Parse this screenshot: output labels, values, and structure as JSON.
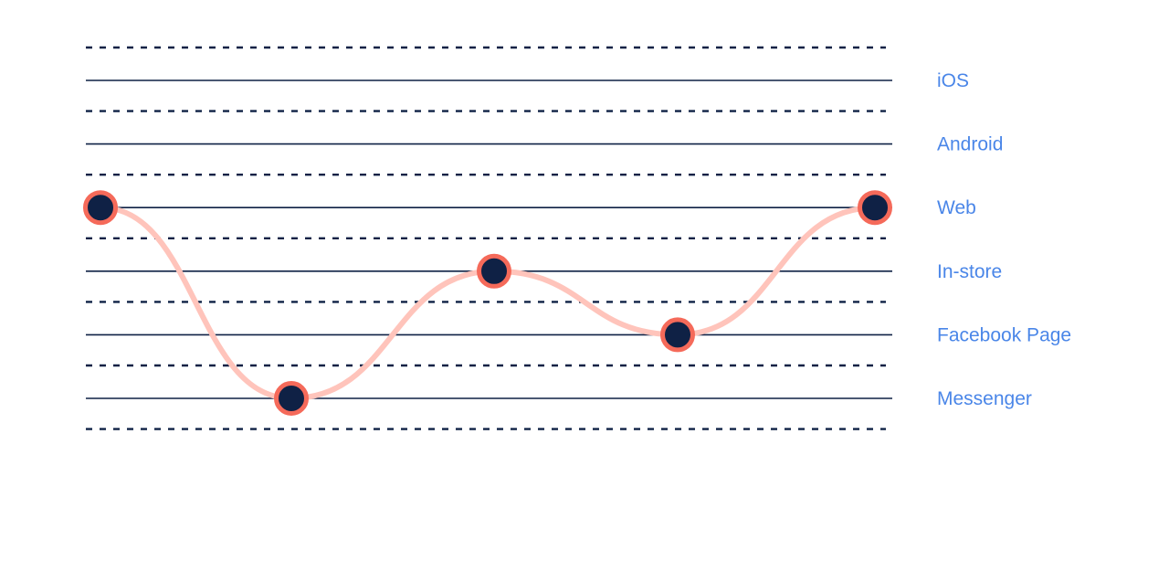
{
  "colors": {
    "line": "#0f2145",
    "path": "#ffc4bb",
    "dot_fill": "#0f2145",
    "dot_ring": "#f56a5a",
    "label": "#4a86e8"
  },
  "channels": [
    {
      "label": "iOS"
    },
    {
      "label": "Android"
    },
    {
      "label": "Web"
    },
    {
      "label": "In-store"
    },
    {
      "label": "Facebook Page"
    },
    {
      "label": "Messenger"
    }
  ],
  "journey": [
    {
      "channel": "Web"
    },
    {
      "channel": "Messenger"
    },
    {
      "channel": "In-store"
    },
    {
      "channel": "Facebook Page"
    },
    {
      "channel": "Web"
    }
  ]
}
